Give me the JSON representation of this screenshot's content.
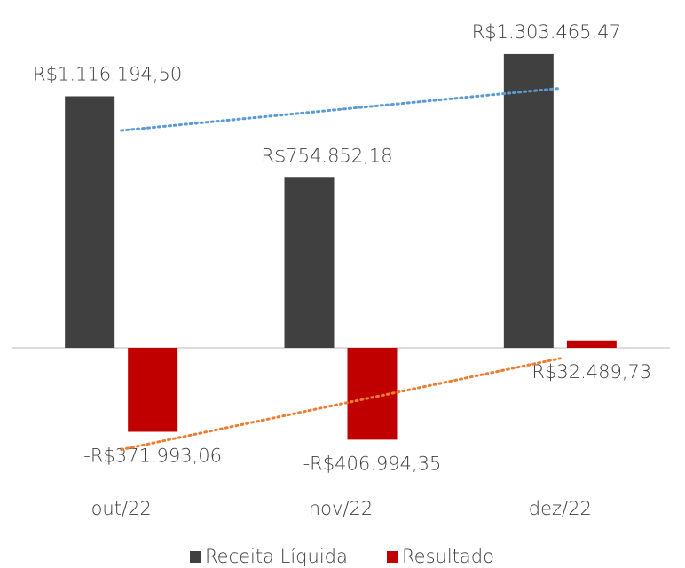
{
  "chart_data": {
    "type": "bar",
    "categories": [
      "out/22",
      "nov/22",
      "dez/22"
    ],
    "series": [
      {
        "name": "Receita Líquida",
        "color": "#404040",
        "values": [
          1116194.5,
          754852.18,
          1303465.47
        ],
        "value_labels": [
          "R$1.116.194,50",
          "R$754.852,18",
          "R$1.303.465,47"
        ],
        "trendline": true,
        "trendline_color": "#5b9bd5"
      },
      {
        "name": "Resultado",
        "color": "#c00000",
        "values": [
          -371993.06,
          -406994.35,
          32489.73
        ],
        "value_labels": [
          "-R$371.993,06",
          "-R$406.994,35",
          "R$32.489,73"
        ],
        "trendline": true,
        "trendline_color": "#ed7d31"
      }
    ],
    "ylim": [
      -500000,
      1400000
    ],
    "legend": "bottom"
  }
}
